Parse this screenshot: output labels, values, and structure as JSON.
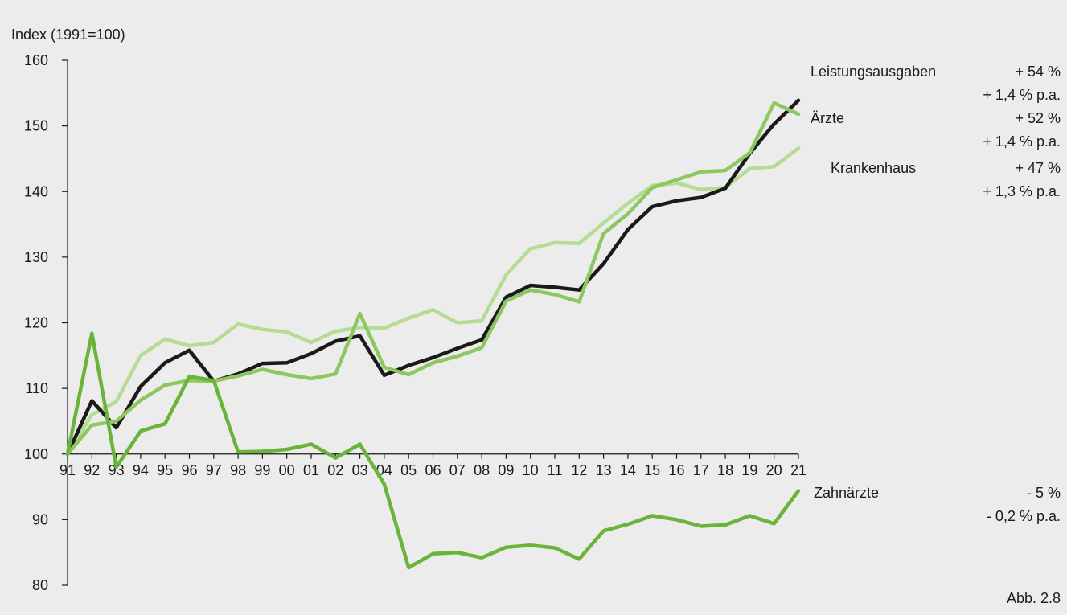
{
  "chart_data": {
    "type": "line",
    "ylabel": "Index (1991=100)",
    "ylim": [
      80,
      160
    ],
    "yticks": [
      80,
      90,
      100,
      110,
      120,
      130,
      140,
      150,
      160
    ],
    "categories": [
      "91",
      "92",
      "93",
      "94",
      "95",
      "96",
      "97",
      "98",
      "99",
      "00",
      "01",
      "02",
      "03",
      "04",
      "05",
      "06",
      "07",
      "08",
      "09",
      "10",
      "11",
      "12",
      "13",
      "14",
      "15",
      "16",
      "17",
      "18",
      "19",
      "20",
      "21"
    ],
    "x_axis_at": 100,
    "grid": false,
    "series": [
      {
        "name": "Krankenhaus",
        "color": "#b5dc94",
        "values": [
          100,
          106,
          108,
          115,
          117.5,
          116.5,
          117,
          119.8,
          119,
          118.6,
          117,
          118.7,
          119.3,
          119.2,
          120.7,
          122,
          120,
          120.3,
          127.3,
          131.3,
          132.2,
          132.1,
          135.2,
          138.2,
          140.9,
          141.3,
          140.3,
          140.6,
          143.5,
          143.8,
          146.6
        ]
      },
      {
        "name": "Leistungsausgaben",
        "color": "#1a1a1a",
        "values": [
          100,
          108.1,
          104,
          110.3,
          113.9,
          115.8,
          111.1,
          112.2,
          113.8,
          113.9,
          115.3,
          117.2,
          118,
          112,
          113.5,
          114.7,
          116.1,
          117.4,
          123.9,
          125.7,
          125.4,
          125,
          129,
          134.2,
          137.7,
          138.6,
          139.1,
          140.5,
          145.8,
          150.3,
          153.9
        ]
      },
      {
        "name": "Ärzte",
        "color": "#8ec760",
        "values": [
          100,
          104.4,
          105,
          108.2,
          110.5,
          111.2,
          111.1,
          111.9,
          112.9,
          112.1,
          111.5,
          112.2,
          121.4,
          113.2,
          112.1,
          113.9,
          114.9,
          116.2,
          123.3,
          125,
          124.3,
          123.2,
          133.6,
          136.6,
          140.6,
          141.8,
          143,
          143.2,
          145.9,
          153.5,
          151.8
        ]
      },
      {
        "name": "Zahnärzte",
        "color": "#6ab43a",
        "values": [
          100,
          118.4,
          98,
          103.5,
          104.6,
          111.8,
          111.2,
          100.3,
          100.4,
          100.7,
          101.5,
          99.4,
          101.5,
          95.4,
          82.7,
          84.8,
          85,
          84.2,
          85.8,
          86.1,
          85.7,
          84,
          88.3,
          89.3,
          90.6,
          90,
          89,
          89.2,
          90.6,
          89.4,
          94.4
        ]
      }
    ],
    "annotations": [
      {
        "label": "Leistungsausgaben",
        "pct": "+ 54 %",
        "pa": "+ 1,4 % p.a."
      },
      {
        "label": "Ärzte",
        "pct": "+ 52 %",
        "pa": "+ 1,4 % p.a."
      },
      {
        "label": "Krankenhaus",
        "pct": "+ 47 %",
        "pa": "+ 1,3 % p.a."
      },
      {
        "label": "Zahnärzte",
        "pct": "- 5 %",
        "pa": "- 0,2 % p.a."
      }
    ],
    "figure_label": "Abb. 2.8"
  }
}
